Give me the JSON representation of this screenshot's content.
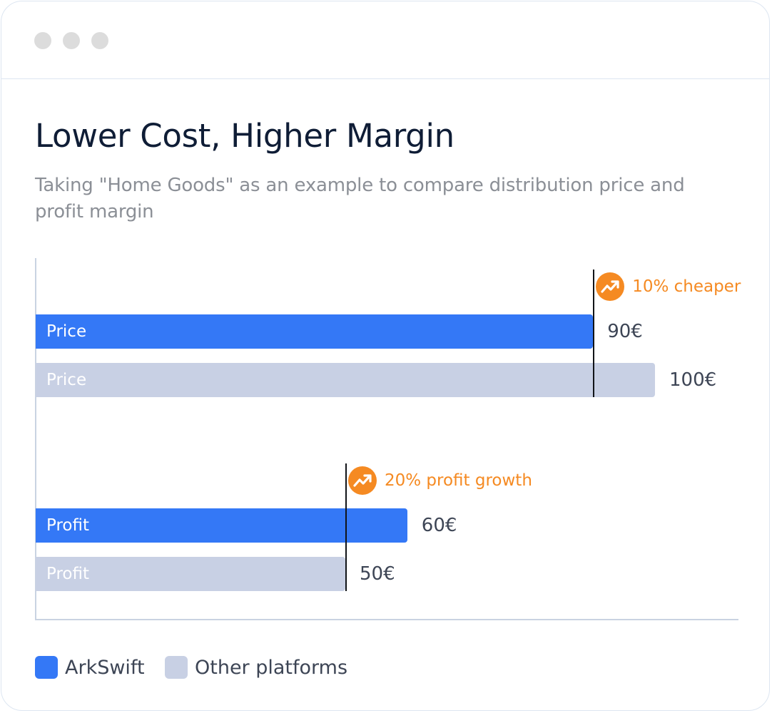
{
  "window": {
    "controls": [
      "close",
      "minimize",
      "maximize"
    ]
  },
  "title": "Lower Cost, Higher Margin",
  "subtitle": "Taking \"Home Goods\" as an example to compare distribution price and profit margin",
  "colors": {
    "arkswift": "#3478f6",
    "other": "#c8d0e4",
    "accent": "#f58a22",
    "title": "#0f1d36"
  },
  "chart_data": {
    "type": "bar",
    "orientation": "horizontal",
    "xlim": [
      0,
      100
    ],
    "unit": "€",
    "groups": [
      {
        "bars": [
          {
            "series": "ArkSwift",
            "label": "Price",
            "value": 90,
            "value_label": "90€"
          },
          {
            "series": "Other platforms",
            "label": "Price",
            "value": 100,
            "value_label": "100€"
          }
        ],
        "marker_value": 90,
        "annotation": {
          "icon": "trend-up-icon",
          "text": "10% cheaper"
        }
      },
      {
        "bars": [
          {
            "series": "ArkSwift",
            "label": "Profit",
            "value": 60,
            "value_label": "60€"
          },
          {
            "series": "Other platforms",
            "label": "Profit",
            "value": 50,
            "value_label": "50€"
          }
        ],
        "marker_value": 50,
        "annotation": {
          "icon": "trend-up-icon",
          "text": "20% profit growth"
        }
      }
    ],
    "legend": [
      {
        "name": "ArkSwift",
        "color": "#3478f6"
      },
      {
        "name": "Other platforms",
        "color": "#c8d0e4"
      }
    ],
    "legend_position": "bottom-left",
    "grid": false
  }
}
